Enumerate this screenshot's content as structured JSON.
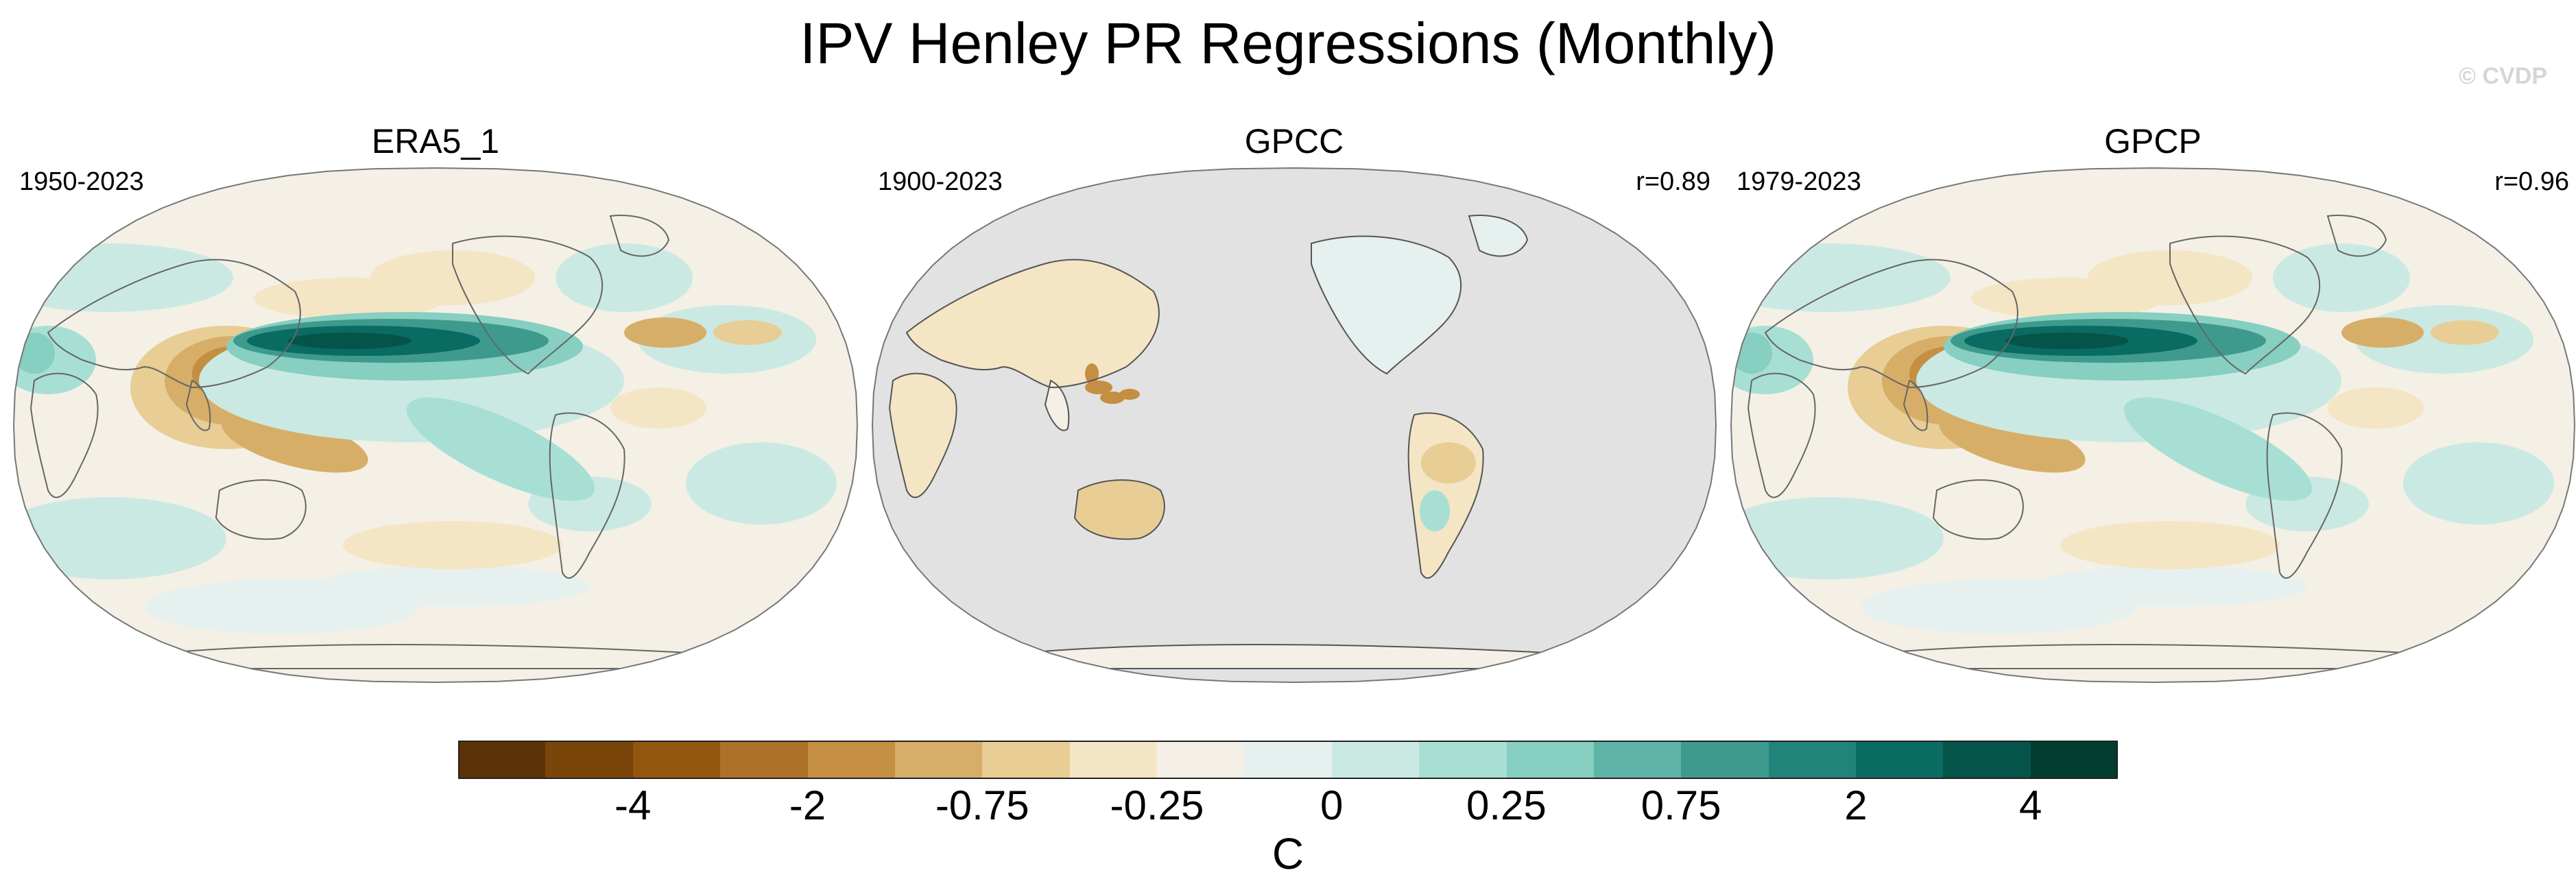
{
  "title": "IPV Henley PR Regressions (Monthly)",
  "copyright": "© CVDP",
  "panels": [
    {
      "name": "ERA5_1",
      "period": "1950-2023",
      "corr": "",
      "background": "#f4f0e6"
    },
    {
      "name": "GPCC",
      "period": "1900-2023",
      "corr": "r=0.89",
      "background": "#e2e2e2"
    },
    {
      "name": "GPCP",
      "period": "1979-2023",
      "corr": "r=0.96",
      "background": "#f4f0e6"
    }
  ],
  "colorbar": {
    "colors": [
      "#5c3306",
      "#7a4508",
      "#93560e",
      "#ad7129",
      "#c48f42",
      "#d7ae68",
      "#e8cd95",
      "#f4e5c4",
      "#f5f0e6",
      "#e6f1ef",
      "#cbe9e3",
      "#a8dfd5",
      "#86cfc1",
      "#5fb4a8",
      "#3f9a8e",
      "#21837a",
      "#0a6b63",
      "#055449",
      "#023d32"
    ],
    "tick_labels": [
      "-4",
      "-2",
      "-0.75",
      "-0.25",
      "0",
      "0.25",
      "0.75",
      "2",
      "4"
    ],
    "units": "C"
  }
}
